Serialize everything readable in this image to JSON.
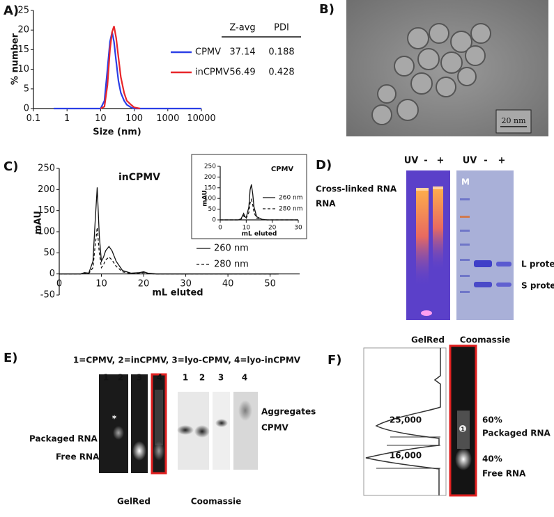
{
  "figure": {
    "panel_labels": [
      "A)",
      "B)",
      "C)",
      "D)",
      "E)",
      "F)"
    ]
  },
  "chart_data": [
    {
      "type": "line",
      "xlabel": "Size (nm)",
      "ylabel": "% number",
      "xscale": "log",
      "xlim": [
        0.1,
        10000
      ],
      "xticks": [
        0.1,
        1,
        10,
        100,
        1000,
        10000
      ],
      "ylim": [
        0,
        25
      ],
      "yticks": [
        0,
        5,
        10,
        15,
        20,
        25
      ],
      "series": [
        {
          "name": "CPMV",
          "color": "#2b3fe6",
          "x": [
            0.4,
            10,
            13,
            16,
            19,
            22,
            25,
            29,
            34,
            40,
            50,
            60,
            80,
            100,
            10000
          ],
          "values": [
            0,
            0,
            2,
            10,
            17,
            19.5,
            17,
            12,
            7,
            4,
            2,
            1,
            0.3,
            0,
            0
          ]
        },
        {
          "name": "inCPMV",
          "color": "#e8262a",
          "x": [
            10,
            13,
            16,
            19,
            22,
            25,
            29,
            34,
            40,
            50,
            60,
            80,
            100,
            150
          ],
          "values": [
            0,
            0.5,
            6,
            15,
            19.5,
            21,
            18,
            13,
            8,
            4,
            2,
            1,
            0.3,
            0
          ]
        }
      ],
      "table": {
        "columns": [
          "Z-avg",
          "PDI"
        ],
        "rows": [
          [
            37.14,
            0.188
          ],
          [
            56.49,
            0.428
          ]
        ]
      }
    },
    {
      "type": "line",
      "title": "inCPMV",
      "xlabel": "mL eluted",
      "ylabel": "mAU",
      "xlim": [
        0,
        57
      ],
      "xticks": [
        0,
        10,
        20,
        30,
        40,
        50
      ],
      "ylim": [
        -50,
        250
      ],
      "yticks": [
        -50,
        0,
        50,
        100,
        150,
        200,
        250
      ],
      "series": [
        {
          "name": "260 nm",
          "color": "#111111",
          "linestyle": "solid",
          "x": [
            0,
            3,
            5,
            6,
            7,
            8,
            8.5,
            9,
            9.5,
            10,
            10.5,
            11,
            11.8,
            12.5,
            13.5,
            15,
            17,
            19,
            20,
            21,
            23,
            52
          ],
          "values": [
            0,
            0,
            0,
            3,
            2,
            30,
            120,
            205,
            90,
            30,
            40,
            55,
            65,
            55,
            30,
            8,
            2,
            3,
            5,
            2,
            0,
            0
          ]
        },
        {
          "name": "280 nm",
          "color": "#111111",
          "linestyle": "dashed",
          "x": [
            0,
            3,
            5,
            6,
            7,
            8,
            8.5,
            9,
            9.5,
            10,
            10.5,
            11,
            11.8,
            12.5,
            13.5,
            15,
            17,
            19,
            20,
            21,
            23,
            52
          ],
          "values": [
            0,
            0,
            0,
            2,
            1,
            15,
            65,
            110,
            50,
            15,
            22,
            33,
            40,
            33,
            18,
            5,
            1,
            2,
            3,
            1,
            0,
            0
          ]
        }
      ]
    },
    {
      "type": "line",
      "title": "CPMV",
      "xlabel": "mL eluted",
      "ylabel": "mAU",
      "xlim": [
        0,
        30
      ],
      "xticks": [
        0,
        10,
        20,
        30
      ],
      "ylim": [
        0,
        250
      ],
      "yticks": [
        0,
        50,
        100,
        150,
        200,
        250
      ],
      "series": [
        {
          "name": "260 nm",
          "color": "#111111",
          "linestyle": "solid",
          "x": [
            0,
            5,
            7,
            8,
            9,
            9.5,
            10,
            11,
            11.5,
            12,
            12.5,
            13,
            14,
            16,
            18,
            30
          ],
          "values": [
            0,
            0,
            0,
            5,
            30,
            15,
            10,
            60,
            140,
            165,
            120,
            60,
            15,
            3,
            0,
            0
          ]
        },
        {
          "name": "280 nm",
          "color": "#111111",
          "linestyle": "dashed",
          "x": [
            0,
            5,
            7,
            8,
            9,
            9.5,
            10,
            11,
            11.5,
            12,
            12.5,
            13,
            14,
            16,
            18,
            30
          ],
          "values": [
            0,
            0,
            0,
            3,
            20,
            10,
            7,
            35,
            80,
            95,
            70,
            35,
            8,
            2,
            0,
            0
          ]
        }
      ]
    }
  ],
  "panel_b": {
    "scale_bar": "20 nm"
  },
  "panel_d": {
    "gel_headers": [
      "UV",
      "-",
      "+",
      "UV",
      "-",
      "+"
    ],
    "band_labels_left": [
      "Cross-linked RNA",
      "RNA"
    ],
    "marker": "M",
    "band_labels_right": [
      "L protein",
      "S protein"
    ],
    "stains": [
      "GelRed",
      "Coomassie"
    ]
  },
  "panel_e": {
    "legend": "1=CPMV, 2=inCPMV, 3=lyo-CPMV, 4=lyo-inCPMV",
    "lanes_gelred": [
      "1",
      "2",
      "3",
      "4"
    ],
    "lanes_coomassie": [
      "1",
      "2",
      "3",
      "4"
    ],
    "asterisk": "*",
    "labels_left": [
      "Packaged RNA",
      "Free RNA"
    ],
    "labels_right": [
      "Aggregates",
      "CPMV"
    ],
    "stains": [
      "GelRed",
      "Coomassie"
    ]
  },
  "panel_f": {
    "peak_values": [
      "25,000",
      "16,000"
    ],
    "lane": "1",
    "fractions": [
      "60%",
      "40%"
    ],
    "bands": [
      "Packaged RNA",
      "Free RNA"
    ]
  }
}
